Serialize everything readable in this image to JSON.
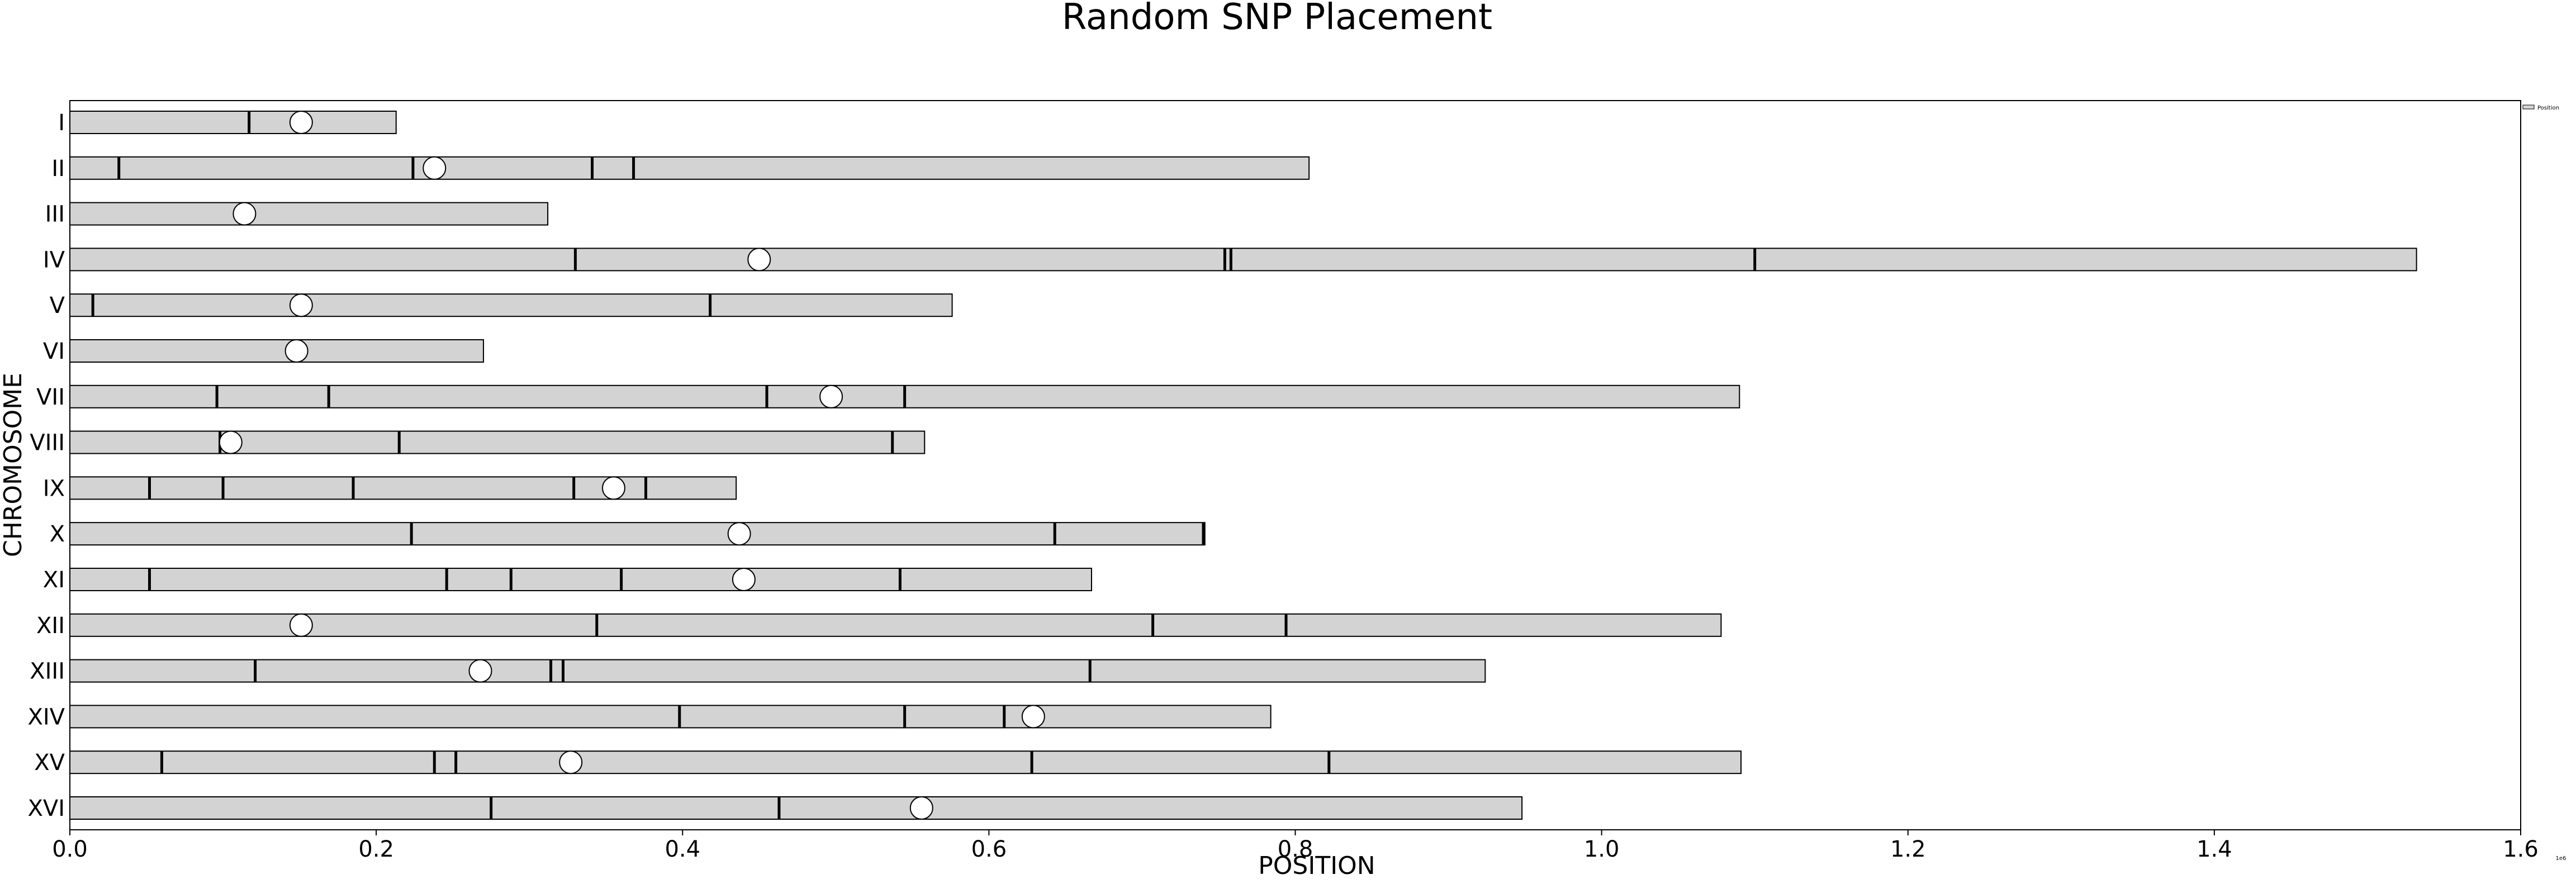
{
  "chart_data": {
    "type": "bar",
    "orientation": "horizontal",
    "title": "Random SNP Placement",
    "xlabel": "POSITION",
    "ylabel": "CHROMOSOME",
    "x_offset_label": "1e6",
    "xlim": [
      0,
      1600000
    ],
    "x_ticks": [
      0,
      200000,
      400000,
      600000,
      800000,
      1000000,
      1200000,
      1400000,
      1600000
    ],
    "x_tick_labels": [
      "0.0",
      "0.2",
      "0.4",
      "0.6",
      "0.8",
      "1.0",
      "1.2",
      "1.4",
      "1.6"
    ],
    "grid": false,
    "legend": {
      "position": "top-right",
      "entries": [
        "Position"
      ]
    },
    "colors": {
      "bar": "#d3d3d3",
      "snp": "#000000",
      "centromere": "#ffffff"
    },
    "chromosomes": [
      {
        "name": "I",
        "length": 213000,
        "centromere": 151000,
        "snps": [
          117000
        ]
      },
      {
        "name": "II",
        "length": 809000,
        "centromere": 238000,
        "snps": [
          32000,
          224000,
          341000,
          368000
        ]
      },
      {
        "name": "III",
        "length": 312000,
        "centromere": 114000,
        "snps": []
      },
      {
        "name": "IV",
        "length": 1532000,
        "centromere": 450000,
        "snps": [
          330000,
          754000,
          758000,
          1100000
        ]
      },
      {
        "name": "V",
        "length": 576000,
        "centromere": 151000,
        "snps": [
          15000,
          418000
        ]
      },
      {
        "name": "VI",
        "length": 270000,
        "centromere": 148000,
        "snps": []
      },
      {
        "name": "VII",
        "length": 1090000,
        "centromere": 497000,
        "snps": [
          96000,
          169000,
          455000,
          545000
        ]
      },
      {
        "name": "VIII",
        "length": 558000,
        "centromere": 105000,
        "snps": [
          98000,
          215000,
          537000
        ]
      },
      {
        "name": "IX",
        "length": 435000,
        "centromere": 355000,
        "snps": [
          52000,
          100000,
          185000,
          329000,
          376000
        ]
      },
      {
        "name": "X",
        "length": 741000,
        "centromere": 437000,
        "snps": [
          223000,
          643000,
          740000
        ]
      },
      {
        "name": "XI",
        "length": 667000,
        "centromere": 440000,
        "snps": [
          52000,
          246000,
          288000,
          360000,
          542000
        ]
      },
      {
        "name": "XII",
        "length": 1078000,
        "centromere": 151000,
        "snps": [
          344000,
          707000,
          794000
        ]
      },
      {
        "name": "XIII",
        "length": 924000,
        "centromere": 268000,
        "snps": [
          121000,
          314000,
          322000,
          666000
        ]
      },
      {
        "name": "XIV",
        "length": 784000,
        "centromere": 629000,
        "snps": [
          398000,
          545000,
          610000
        ]
      },
      {
        "name": "XV",
        "length": 1091000,
        "centromere": 327000,
        "snps": [
          60000,
          238000,
          252000,
          628000,
          822000
        ]
      },
      {
        "name": "XVI",
        "length": 948000,
        "centromere": 556000,
        "snps": [
          275000,
          463000
        ]
      }
    ]
  }
}
